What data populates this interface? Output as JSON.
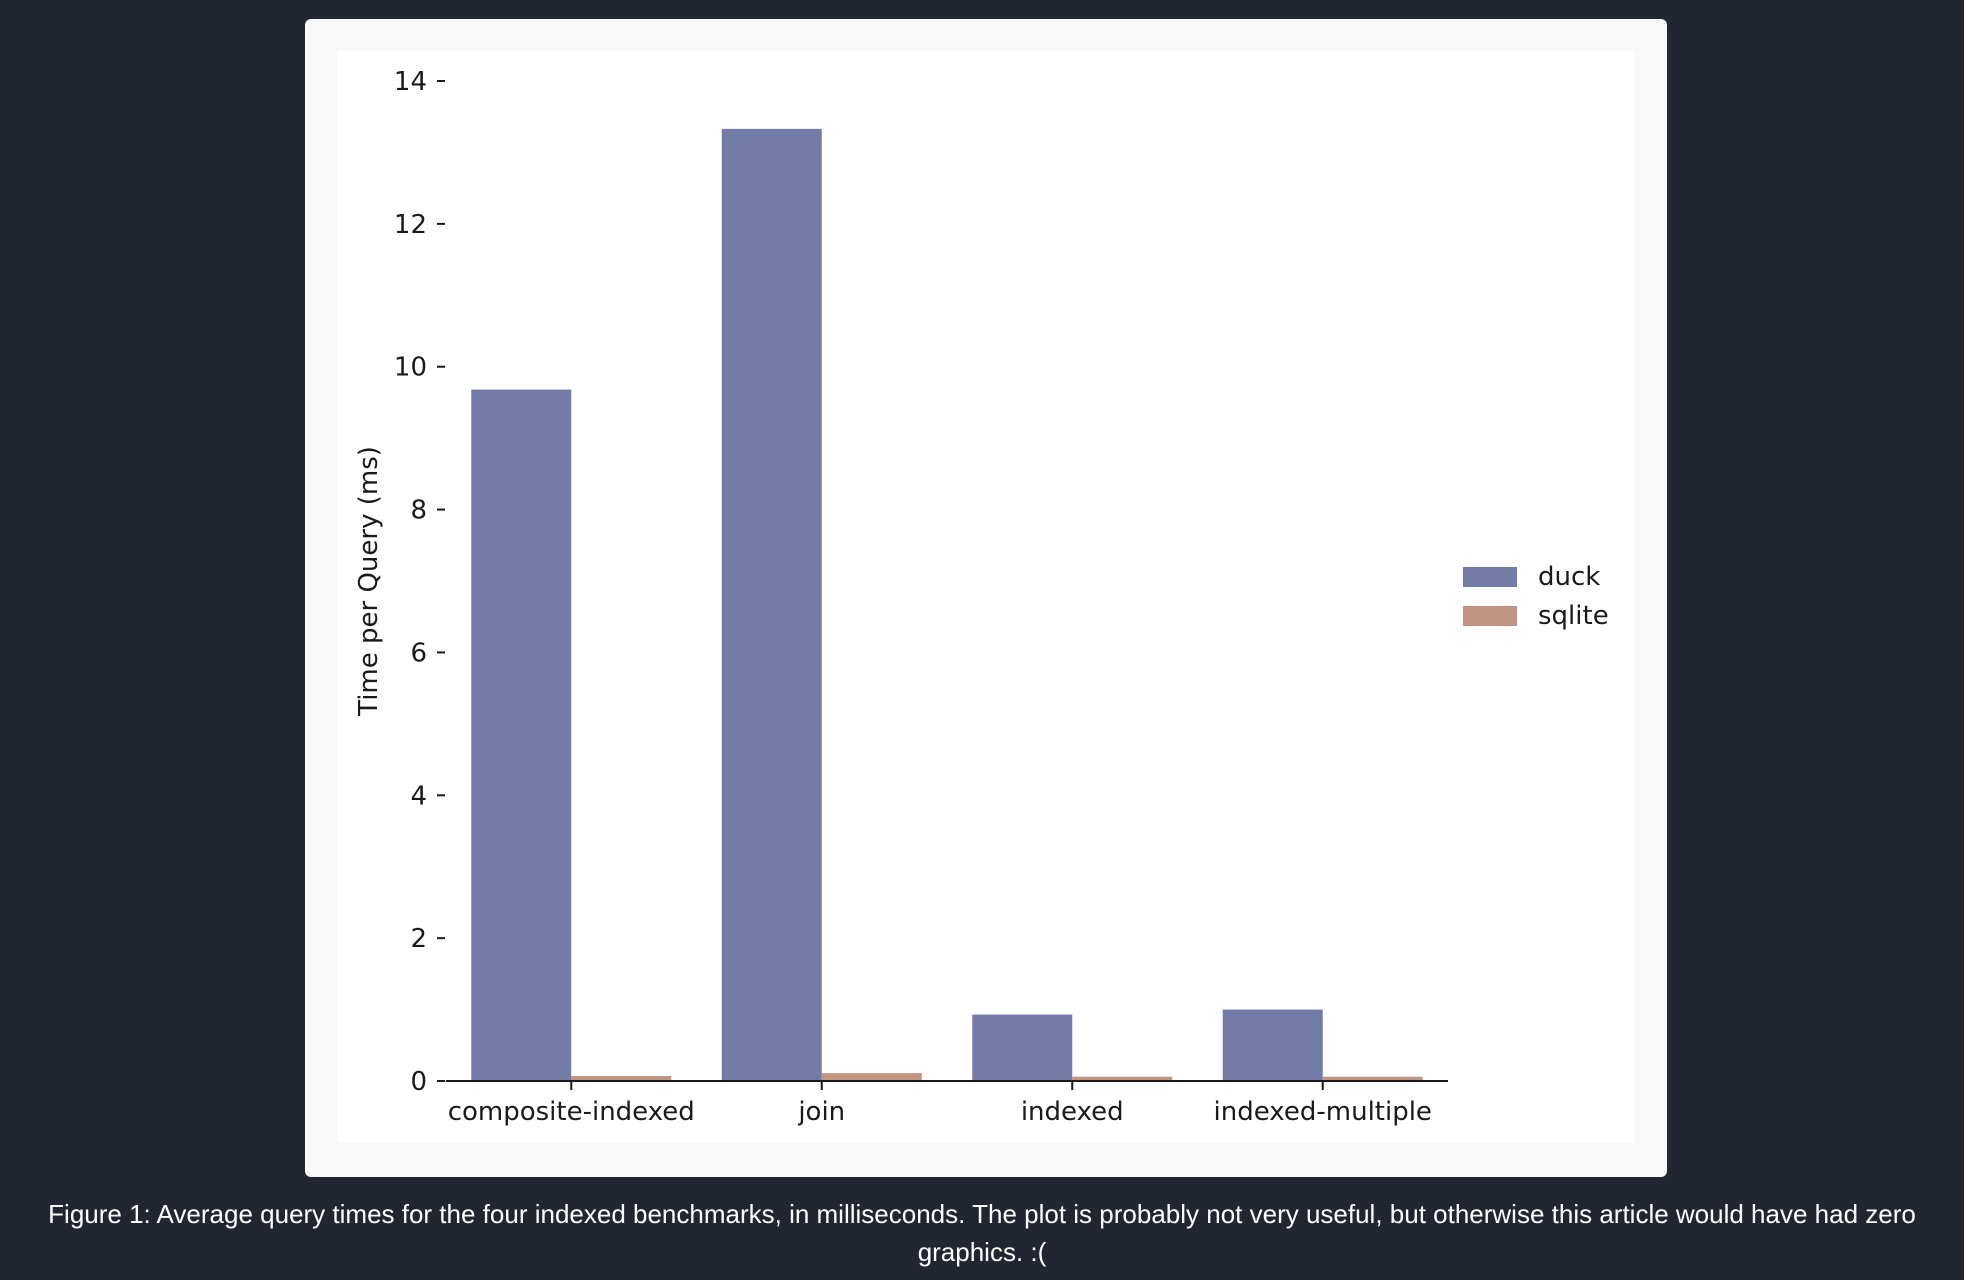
{
  "chart_data": {
    "type": "bar",
    "categories": [
      "composite-indexed",
      "join",
      "indexed",
      "indexed-multiple"
    ],
    "series": [
      {
        "name": "duck",
        "values": [
          9.68,
          13.33,
          0.93,
          1.0
        ],
        "color": "#737ca7"
      },
      {
        "name": "sqlite",
        "values": [
          0.07,
          0.11,
          0.06,
          0.06
        ],
        "color": "#c09480"
      }
    ],
    "title": "",
    "xlabel": "",
    "ylabel": "Time per Query (ms)",
    "ylim": [
      0,
      14
    ],
    "yticks": [
      0,
      2,
      4,
      6,
      8,
      10,
      12,
      14
    ],
    "ytick_labels": [
      "0",
      "2",
      "4",
      "6",
      "8",
      "10",
      "12",
      "14"
    ],
    "grid": false,
    "legend_position": "right"
  },
  "caption": "Figure 1: Average query times for the four indexed benchmarks, in milliseconds. The plot is probably not very useful, but otherwise this article would have had zero graphics. :("
}
